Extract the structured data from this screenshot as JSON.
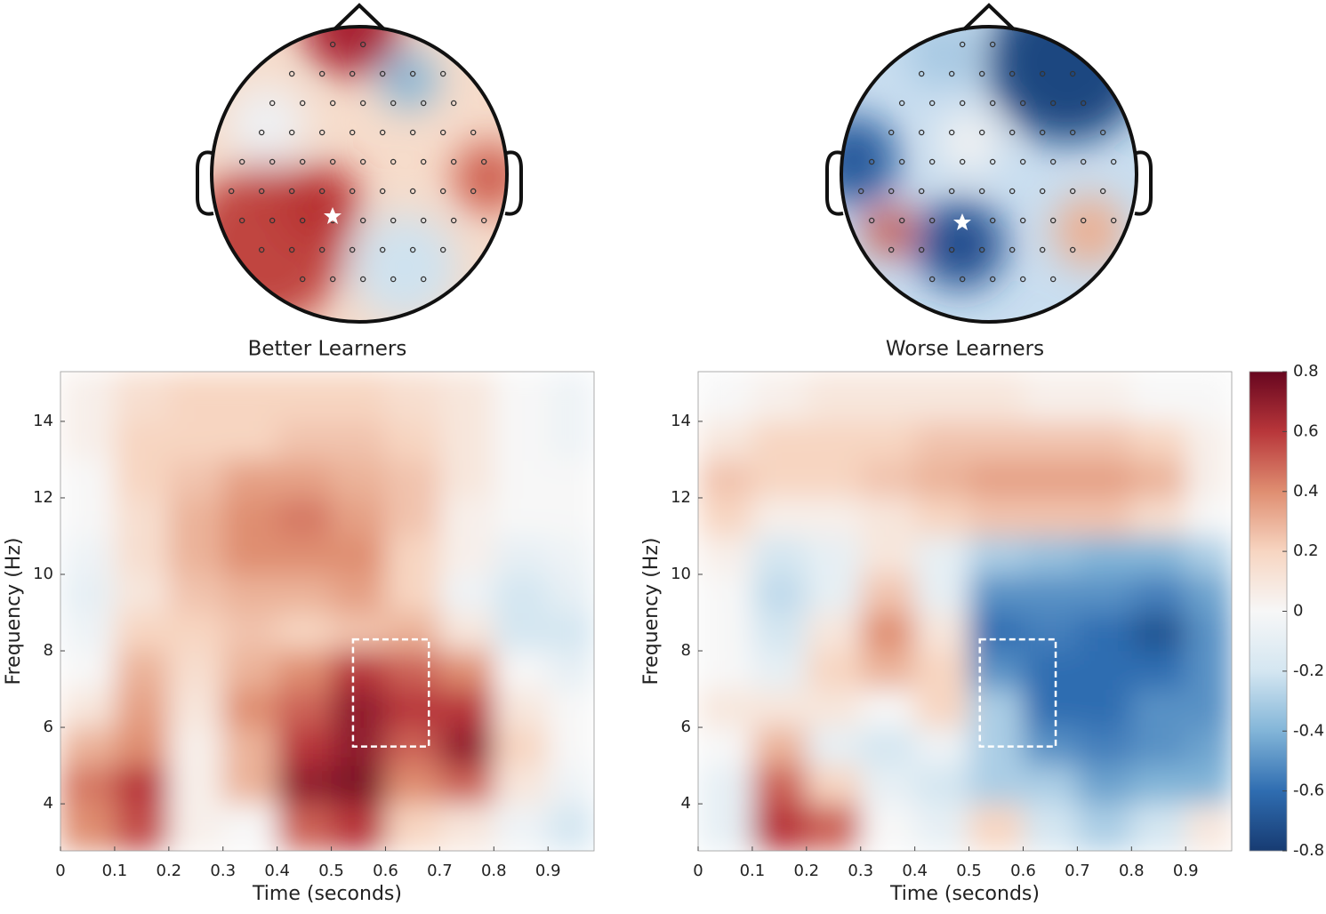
{
  "chart_data": [
    {
      "type": "heatmap",
      "title": "Better Learners",
      "xlabel": "Time (seconds)",
      "ylabel": "Frequency (Hz)",
      "x": [
        0.05,
        0.15,
        0.25,
        0.35,
        0.45,
        0.55,
        0.65,
        0.75,
        0.85,
        0.95
      ],
      "y": [
        3.5,
        4.5,
        5.5,
        6.5,
        7.5,
        8.5,
        9.5,
        10.5,
        11.5,
        12.5,
        13.5,
        14.5
      ],
      "values": [
        [
          0.4,
          0.55,
          0.05,
          0,
          0.5,
          0.6,
          0.2,
          0.1,
          -0.05,
          -0.2
        ],
        [
          0.45,
          0.6,
          0.05,
          0.3,
          0.7,
          0.75,
          0.4,
          0.5,
          0.1,
          -0.05
        ],
        [
          0.3,
          0.4,
          0.05,
          0.3,
          0.6,
          0.7,
          0.5,
          0.7,
          0.2,
          0
        ],
        [
          0.1,
          0.35,
          0.1,
          0.4,
          0.5,
          0.7,
          0.6,
          0.6,
          0.1,
          0
        ],
        [
          0,
          0.3,
          0.15,
          0.3,
          0.4,
          0.6,
          0.5,
          0.4,
          0,
          -0.1
        ],
        [
          -0.05,
          0.2,
          0.2,
          0.25,
          0.2,
          0.25,
          0.3,
          0.1,
          -0.2,
          -0.2
        ],
        [
          -0.1,
          0.1,
          0.25,
          0.3,
          0.3,
          0.35,
          0.2,
          -0.05,
          -0.2,
          -0.1
        ],
        [
          -0.05,
          0.15,
          0.3,
          0.4,
          0.4,
          0.4,
          0.2,
          0.05,
          -0.1,
          -0.05
        ],
        [
          0,
          0.15,
          0.3,
          0.4,
          0.45,
          0.35,
          0.25,
          0.05,
          0,
          0
        ],
        [
          0,
          0.2,
          0.25,
          0.35,
          0.35,
          0.3,
          0.25,
          0.1,
          0,
          0
        ],
        [
          0.05,
          0.2,
          0.2,
          0.2,
          0.25,
          0.25,
          0.2,
          0.1,
          0,
          -0.05
        ],
        [
          0.05,
          0.15,
          0.2,
          0.2,
          0.2,
          0.2,
          0.15,
          0.1,
          0,
          -0.05
        ]
      ],
      "xlim": [
        0,
        0.985
      ],
      "ylim": [
        2.77,
        15.3
      ],
      "xticks": [
        0,
        0.1,
        0.2,
        0.3,
        0.4,
        0.5,
        0.6,
        0.7,
        0.8,
        0.9
      ],
      "yticks": [
        4,
        6,
        8,
        10,
        12,
        14
      ],
      "roi": {
        "x": [
          0.54,
          0.68
        ],
        "y": [
          5.5,
          8.3
        ]
      }
    },
    {
      "type": "heatmap",
      "title": "Worse Learners",
      "xlabel": "Time (seconds)",
      "ylabel": "Frequency (Hz)",
      "x": [
        0.05,
        0.15,
        0.25,
        0.35,
        0.45,
        0.55,
        0.65,
        0.75,
        0.85,
        0.95
      ],
      "y": [
        3.5,
        4.5,
        5.5,
        6.5,
        7.5,
        8.5,
        9.5,
        10.5,
        11.5,
        12.5,
        13.5,
        14.5
      ],
      "values": [
        [
          -0.1,
          0.6,
          0.5,
          0,
          -0.1,
          0.2,
          -0.2,
          -0.3,
          -0.2,
          0.1
        ],
        [
          -0.1,
          0.5,
          0.2,
          -0.1,
          -0.2,
          -0.3,
          -0.3,
          -0.45,
          -0.4,
          -0.4
        ],
        [
          0,
          0.3,
          -0.1,
          -0.2,
          -0.05,
          -0.3,
          -0.5,
          -0.55,
          -0.5,
          -0.45
        ],
        [
          0.1,
          0.1,
          0.1,
          0,
          0.2,
          -0.3,
          -0.6,
          -0.6,
          -0.5,
          -0.5
        ],
        [
          0,
          -0.1,
          0.2,
          0.3,
          0.2,
          -0.5,
          -0.6,
          -0.6,
          -0.6,
          -0.5
        ],
        [
          0,
          -0.2,
          0.1,
          0.4,
          0.1,
          -0.6,
          -0.55,
          -0.6,
          -0.7,
          -0.5
        ],
        [
          0,
          -0.25,
          -0.1,
          0.25,
          -0.1,
          -0.5,
          -0.5,
          -0.5,
          -0.55,
          -0.45
        ],
        [
          0.05,
          -0.2,
          -0.1,
          0.1,
          -0.1,
          -0.3,
          -0.35,
          -0.4,
          -0.4,
          -0.3
        ],
        [
          0.2,
          0.05,
          0.05,
          0.1,
          0.2,
          0.25,
          0.25,
          0.25,
          0.15,
          0
        ],
        [
          0.25,
          0.2,
          0.2,
          0.25,
          0.3,
          0.35,
          0.35,
          0.35,
          0.3,
          0.05
        ],
        [
          0.1,
          0.2,
          0.2,
          0.2,
          0.25,
          0.25,
          0.25,
          0.25,
          0.2,
          0.05
        ],
        [
          0,
          0.05,
          0.1,
          0.1,
          0.1,
          0.1,
          0.05,
          0.05,
          0,
          0
        ]
      ],
      "xlim": [
        0,
        0.985
      ],
      "ylim": [
        2.77,
        15.3
      ],
      "xticks": [
        0,
        0.1,
        0.2,
        0.3,
        0.4,
        0.5,
        0.6,
        0.7,
        0.8,
        0.9
      ],
      "yticks": [
        4,
        6,
        8,
        10,
        12,
        14
      ],
      "roi": {
        "x": [
          0.52,
          0.66
        ],
        "y": [
          5.5,
          8.3
        ]
      }
    }
  ],
  "colorbar": {
    "clim": [
      -0.8,
      0.8
    ],
    "ticks": [
      -0.8,
      -0.6,
      -0.4,
      -0.2,
      0,
      0.2,
      0.4,
      0.6,
      0.8
    ],
    "colormap": [
      "#173b72",
      "#2f6db1",
      "#82b5d8",
      "#d4e6f1",
      "#f7f7f7",
      "#f7d5c1",
      "#df8e71",
      "#b8363a",
      "#67061f"
    ]
  }
}
